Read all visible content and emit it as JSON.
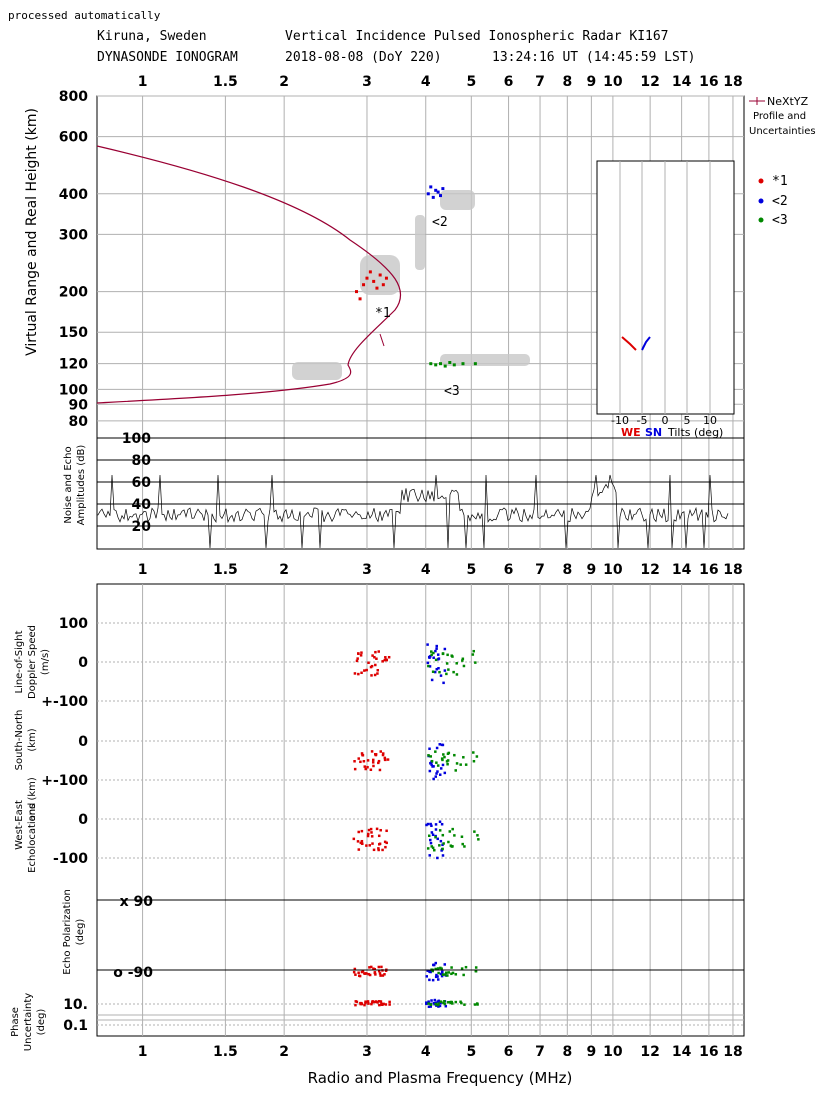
{
  "header": {
    "note": "processed automatically",
    "station": "Kiruna, Sweden",
    "instrument": "Vertical Incidence Pulsed Ionospheric Radar KI167",
    "type": "DYNASONDE IONOGRAM",
    "date": "2018-08-08 (DoY 220)",
    "time": "13:24:16 UT (14:45:59 LST)"
  },
  "colors": {
    "series1": "#dd0000",
    "series2": "#0000dd",
    "series3": "#008800",
    "profile": "#990033",
    "grid": "#b0b0b0"
  },
  "legend": {
    "profile_label": "NeXtYZ",
    "profile_sub1": "Profile and",
    "profile_sub2": "Uncertainties",
    "items": [
      {
        "marker": "•",
        "name": "*1"
      },
      {
        "marker": "•",
        "name": "<2"
      },
      {
        "marker": "•",
        "name": "<3"
      }
    ]
  },
  "chart_data": [
    {
      "type": "scatter",
      "title": "",
      "xlabel": "Radio and Plasma Frequency (MHz)",
      "x_ticks": [
        "1",
        "1.5",
        "2",
        "3",
        "4",
        "5",
        "6",
        "7",
        "8",
        "9",
        "10",
        "12",
        "14",
        "16",
        "18"
      ],
      "x_scale": "log",
      "xlim": [
        0.8,
        19
      ],
      "ylabel": "Virtual Range and Real Height (km)",
      "y_ticks": [
        "800",
        "600",
        "400",
        "300",
        "200",
        "150",
        "120",
        "100",
        "90",
        "80"
      ],
      "y_scale": "log",
      "annotations": [
        "*1",
        "<2",
        "<3"
      ],
      "series": [
        {
          "name": "*1",
          "points": [
            [
              2.85,
              200
            ],
            [
              2.9,
              190
            ],
            [
              2.95,
              210
            ],
            [
              3.0,
              220
            ],
            [
              3.05,
              230
            ],
            [
              3.1,
              215
            ],
            [
              3.15,
              205
            ],
            [
              3.2,
              225
            ],
            [
              3.25,
              210
            ],
            [
              3.3,
              220
            ]
          ]
        },
        {
          "name": "<2",
          "points": [
            [
              4.05,
              400
            ],
            [
              4.1,
              420
            ],
            [
              4.15,
              390
            ],
            [
              4.2,
              410
            ],
            [
              4.25,
              405
            ],
            [
              4.3,
              395
            ],
            [
              4.35,
              415
            ]
          ]
        },
        {
          "name": "<3",
          "points": [
            [
              4.1,
              120
            ],
            [
              4.2,
              119
            ],
            [
              4.3,
              120
            ],
            [
              4.4,
              118
            ],
            [
              4.5,
              121
            ],
            [
              4.6,
              119
            ],
            [
              4.8,
              120
            ],
            [
              5.1,
              120
            ]
          ]
        }
      ],
      "inset": {
        "xlabel": "Tilts (deg)",
        "x_ticks": [
          "-10",
          "-5",
          "0",
          "5",
          "10"
        ],
        "we_label": "WE",
        "sn_label": "SN"
      }
    },
    {
      "type": "line",
      "ylabel_1": "Noise and Echo",
      "ylabel_2": "Amplitudes (dB)",
      "y_ticks": [
        "100",
        "80",
        "60",
        "40",
        "20"
      ],
      "ylim": [
        0,
        100
      ]
    },
    {
      "type": "scatter",
      "panel_labels": {
        "doppler_1": "Line-of-Sight",
        "doppler_2": "Doppler Speed",
        "doppler_3": "(m/s)",
        "loc_1": "South-North",
        "loc_2": "(km)",
        "loc_3": "and",
        "loc_4": "West-East",
        "loc_5": "Echolocations (km)",
        "pol_1": "Echo Polarization",
        "pol_2": "(deg)",
        "unc_1": "Phase",
        "unc_2": "Uncertainty",
        "unc_3": "(deg)"
      },
      "y_ticks": {
        "doppler": [
          "100",
          "0",
          "+-100"
        ],
        "sn": [
          "0",
          "+-100"
        ],
        "we": [
          "0",
          "-100"
        ],
        "pol": [
          "x 90",
          "o -90"
        ],
        "unc": [
          "10.",
          "0.1"
        ]
      }
    }
  ]
}
